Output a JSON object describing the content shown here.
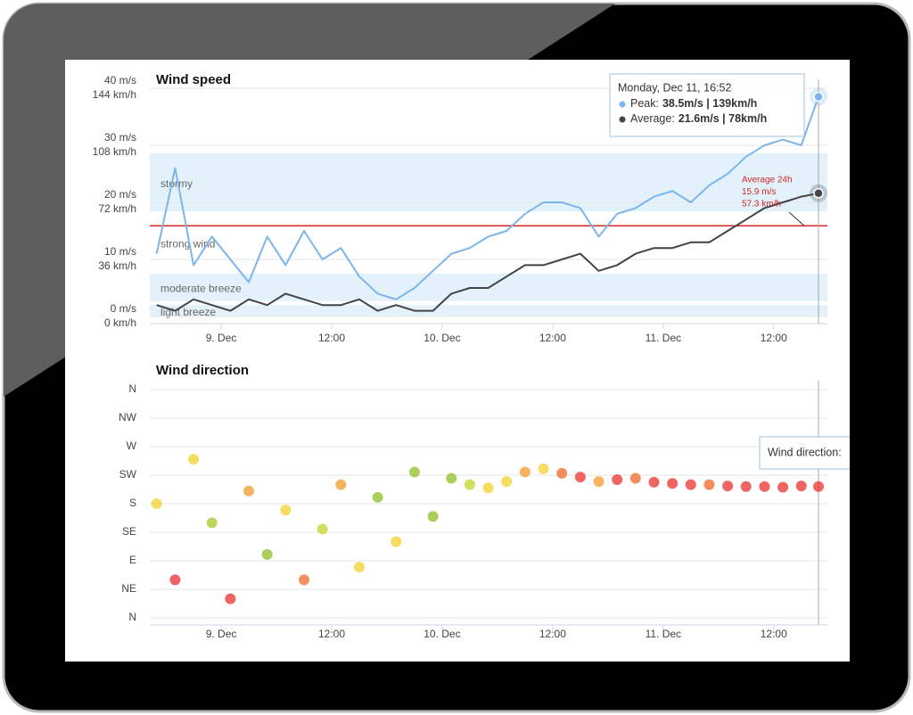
{
  "chart_data": [
    {
      "type": "line",
      "title": "Wind speed",
      "x": [
        "Dec 8, 17:00",
        "Dec 8, 19:00",
        "Dec 8, 21:00",
        "Dec 8, 23:00",
        "Dec 9, 01:00",
        "Dec 9, 03:00",
        "Dec 9, 05:00",
        "Dec 9, 07:00",
        "Dec 9, 09:00",
        "Dec 9, 11:00",
        "Dec 9, 13:00",
        "Dec 9, 15:00",
        "Dec 9, 17:00",
        "Dec 9, 19:00",
        "Dec 9, 21:00",
        "Dec 9, 23:00",
        "Dec 10, 01:00",
        "Dec 10, 03:00",
        "Dec 10, 05:00",
        "Dec 10, 07:00",
        "Dec 10, 09:00",
        "Dec 10, 11:00",
        "Dec 10, 13:00",
        "Dec 10, 15:00",
        "Dec 10, 17:00",
        "Dec 10, 19:00",
        "Dec 10, 21:00",
        "Dec 10, 23:00",
        "Dec 11, 01:00",
        "Dec 11, 03:00",
        "Dec 11, 05:00",
        "Dec 11, 07:00",
        "Dec 11, 09:00",
        "Dec 11, 11:00",
        "Dec 11, 13:00",
        "Dec 11, 15:00",
        "Dec 11, 16:52"
      ],
      "series": [
        {
          "color": "#7cb5ec",
          "values": [
            11,
            26,
            9,
            14,
            10,
            6,
            14,
            9,
            15,
            10,
            12,
            7,
            4,
            3,
            5,
            8,
            11,
            12,
            14,
            15,
            18,
            20,
            20,
            19,
            14,
            18,
            19,
            21,
            22,
            20,
            23,
            25,
            28,
            30,
            31,
            30,
            38.5
          ]
        },
        {
          "color": "#434348",
          "values": [
            2,
            1,
            3,
            2,
            1,
            3,
            2,
            4,
            3,
            2,
            2,
            3,
            1,
            2,
            1,
            1,
            4,
            5,
            5,
            7,
            9,
            9,
            10,
            11,
            8,
            9,
            11,
            12,
            12,
            13,
            13,
            15,
            17,
            19,
            20,
            21,
            21.6
          ]
        }
      ],
      "xlim": [
        "Dec 8, 16:15",
        "Dec 11, 17:50"
      ],
      "xticks": [
        {
          "value": "Dec 9, 00:00",
          "label": "9. Dec"
        },
        {
          "value": "Dec 9, 12:00",
          "label": "12:00"
        },
        {
          "value": "Dec 10, 00:00",
          "label": "10. Dec"
        },
        {
          "value": "Dec 10, 12:00",
          "label": "12:00"
        },
        {
          "value": "Dec 11, 00:00",
          "label": "11. Dec"
        },
        {
          "value": "Dec 11, 12:00",
          "label": "12:00"
        }
      ],
      "ylim": [
        0,
        40
      ],
      "yticks": [
        {
          "value": 0,
          "label": "0 m/s"
        },
        {
          "value": 10,
          "label": "10 m/s"
        },
        {
          "value": 20,
          "label": "20 m/s"
        },
        {
          "value": 30,
          "label": "30 m/s"
        },
        {
          "value": 40,
          "label": "40 m/s"
        }
      ],
      "y2lim": [
        0,
        144
      ],
      "y2ticks": [
        {
          "value": 0,
          "label": "0 km/h"
        },
        {
          "value": 36,
          "label": "36 km/h"
        },
        {
          "value": 72,
          "label": "72 km/h"
        },
        {
          "value": 108,
          "label": "108 km/h"
        },
        {
          "value": 144,
          "label": "144 km/h"
        }
      ],
      "grid": true,
      "bands": [
        {
          "label": "light breeze",
          "from": 0,
          "to": 2,
          "color": "#e3f1fa"
        },
        {
          "label": "moderate breeze",
          "from": 2.7,
          "to": 7.5,
          "color": "#e3f1fa"
        },
        {
          "label": "strong wind",
          "from": 7.5,
          "to": 18.4,
          "color": "#ffffff"
        },
        {
          "label": "stormy",
          "from": 18.4,
          "to": 28.6,
          "color": "#e3f1fa"
        }
      ],
      "average_line": {
        "value": 15.9,
        "color": "#d62728",
        "labels": [
          "Average 24h",
          "15.9 m/s",
          "57.3 km/h"
        ]
      },
      "tooltip": {
        "title": "Monday, Dec 11, 16:52",
        "items": [
          {
            "label": "Peak:",
            "value": "38.5m/s | 139km/h",
            "color": "#7cb5ec"
          },
          {
            "label": "Average:",
            "value": "21.6m/s | 78km/h",
            "color": "#434348"
          }
        ]
      }
    },
    {
      "type": "scatter",
      "title": "Wind direction",
      "x": [
        "Dec 8, 17:00",
        "Dec 8, 19:00",
        "Dec 8, 21:00",
        "Dec 8, 23:00",
        "Dec 9, 01:00",
        "Dec 9, 03:00",
        "Dec 9, 05:00",
        "Dec 9, 07:00",
        "Dec 9, 09:00",
        "Dec 9, 11:00",
        "Dec 9, 13:00",
        "Dec 9, 15:00",
        "Dec 9, 17:00",
        "Dec 9, 19:00",
        "Dec 9, 21:00",
        "Dec 9, 23:00",
        "Dec 10, 01:00",
        "Dec 10, 03:00",
        "Dec 10, 05:00",
        "Dec 10, 07:00",
        "Dec 10, 09:00",
        "Dec 10, 11:00",
        "Dec 10, 13:00",
        "Dec 10, 15:00",
        "Dec 10, 17:00",
        "Dec 10, 19:00",
        "Dec 10, 21:00",
        "Dec 10, 23:00",
        "Dec 11, 01:00",
        "Dec 11, 03:00",
        "Dec 11, 05:00",
        "Dec 11, 07:00",
        "Dec 11, 09:00",
        "Dec 11, 11:00",
        "Dec 11, 13:00",
        "Dec 11, 15:00",
        "Dec 11, 16:52"
      ],
      "series": [
        {
          "values": [
            180,
            60,
            250,
            150,
            30,
            200,
            100,
            170,
            60,
            140,
            210,
            80,
            190,
            120,
            230,
            160,
            220,
            210,
            205,
            215,
            230,
            235,
            228,
            222,
            215,
            218,
            220,
            214,
            212,
            210,
            210,
            208,
            207,
            207,
            206,
            208,
            207
          ],
          "colors": [
            "#f2d22e",
            "#e8312f",
            "#f2d22e",
            "#a8c82a",
            "#e8312f",
            "#f39a2b",
            "#8fbf26",
            "#f2d22e",
            "#ef6a2a",
            "#c5d22f",
            "#f39a2b",
            "#f2d22e",
            "#8fbf26",
            "#f2d22e",
            "#8fbf26",
            "#8fbf26",
            "#8fbf26",
            "#c5d22f",
            "#f2d22e",
            "#f2d22e",
            "#f39a2b",
            "#f2d22e",
            "#ef6a2a",
            "#e8312f",
            "#f39a2b",
            "#e8312f",
            "#ef6a2a",
            "#e8312f",
            "#e8312f",
            "#e8312f",
            "#ef6a2a",
            "#e8312f",
            "#e8312f",
            "#e8312f",
            "#e8312f",
            "#e8312f",
            "#e8312f"
          ]
        }
      ],
      "xlim": [
        "Dec 8, 16:15",
        "Dec 11, 17:50"
      ],
      "xticks": [
        {
          "value": "Dec 9, 00:00",
          "label": "9. Dec"
        },
        {
          "value": "Dec 9, 12:00",
          "label": "12:00"
        },
        {
          "value": "Dec 10, 00:00",
          "label": "10. Dec"
        },
        {
          "value": "Dec 10, 12:00",
          "label": "12:00"
        },
        {
          "value": "Dec 11, 00:00",
          "label": "11. Dec"
        },
        {
          "value": "Dec 11, 12:00",
          "label": "12:00"
        }
      ],
      "ylim": [
        0,
        360
      ],
      "yticks": [
        {
          "value": 0,
          "label": "N"
        },
        {
          "value": 45,
          "label": "NE"
        },
        {
          "value": 90,
          "label": "E"
        },
        {
          "value": 135,
          "label": "SE"
        },
        {
          "value": 180,
          "label": "S"
        },
        {
          "value": 225,
          "label": "SW"
        },
        {
          "value": 270,
          "label": "W"
        },
        {
          "value": 315,
          "label": "NW"
        },
        {
          "value": 360,
          "label": "N"
        }
      ],
      "grid": true,
      "tooltip": {
        "title": "Wind direction:"
      }
    }
  ]
}
